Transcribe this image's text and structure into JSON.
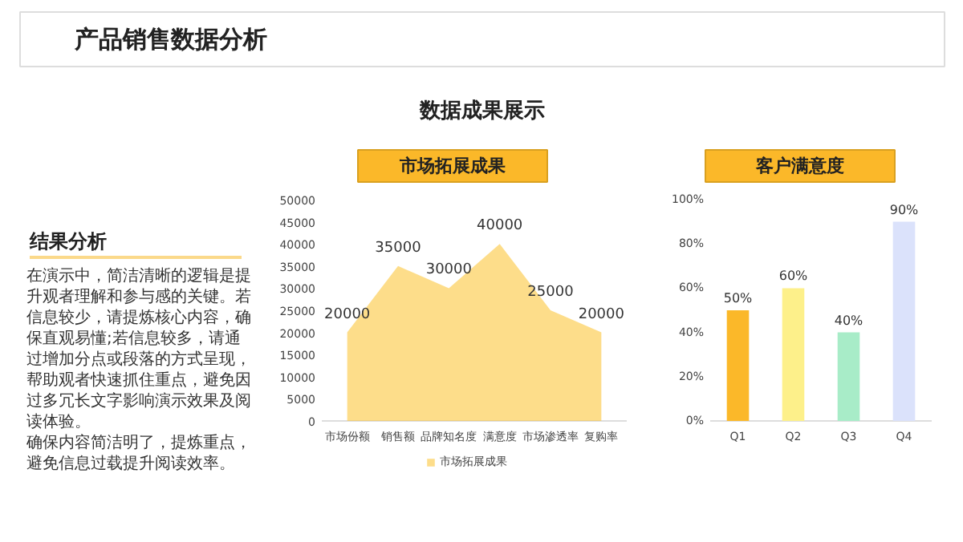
{
  "chart_data": [
    {
      "type": "other",
      "title": "产品销售数据分析",
      "subtitle": "数据成果展示"
    },
    {
      "type": "other",
      "title": "结果分析",
      "annotations": [
        "在演示中，简洁清晰的逻辑是提升观者理解和参与感的关键。若信息较少，请提炼核心内容，确保直观易懂;若信息较多，请通过增加分点或段落的方式呈现，帮助观者快速抓住重点，避免因过多冗长文字影响演示效果及阅读体验。",
        "确保内容简洁明了，提炼重点，避免信息过载提升阅读效率。"
      ]
    },
    {
      "type": "area",
      "title": "市场拓展成果",
      "categories": [
        "市场份额",
        "销售额",
        "品牌知名度",
        "满意度",
        "市场渗透率",
        "复购率"
      ],
      "series": [
        {
          "name": "市场拓展成果",
          "color": "#fcc63c",
          "values": [
            20000,
            35000,
            30000,
            40000,
            25000,
            20000
          ]
        }
      ],
      "ylim": [
        0,
        50000
      ],
      "yticks": [
        0,
        5000,
        10000,
        15000,
        20000,
        25000,
        30000,
        35000,
        40000,
        45000,
        50000
      ],
      "data_labels": true,
      "legend": "bottom",
      "grid": false
    },
    {
      "type": "bar",
      "title": "客户满意度",
      "categories": [
        "Q1",
        "Q2",
        "Q3",
        "Q4"
      ],
      "values": [
        50,
        60,
        40,
        90
      ],
      "colors": [
        "#fbb829",
        "#fdf08a",
        "#a8ecc8",
        "#dbe2fb"
      ],
      "value_labels": [
        "50%",
        "60%",
        "40%",
        "90%"
      ],
      "ylim": [
        0,
        100
      ],
      "yticks": [
        {
          "value": 0,
          "label": "0%"
        },
        {
          "value": 20,
          "label": "20%"
        },
        {
          "value": 40,
          "label": "40%"
        },
        {
          "value": 60,
          "label": "60%"
        },
        {
          "value": 80,
          "label": "80%"
        },
        {
          "value": 100,
          "label": "100%"
        }
      ],
      "grid": false
    }
  ]
}
